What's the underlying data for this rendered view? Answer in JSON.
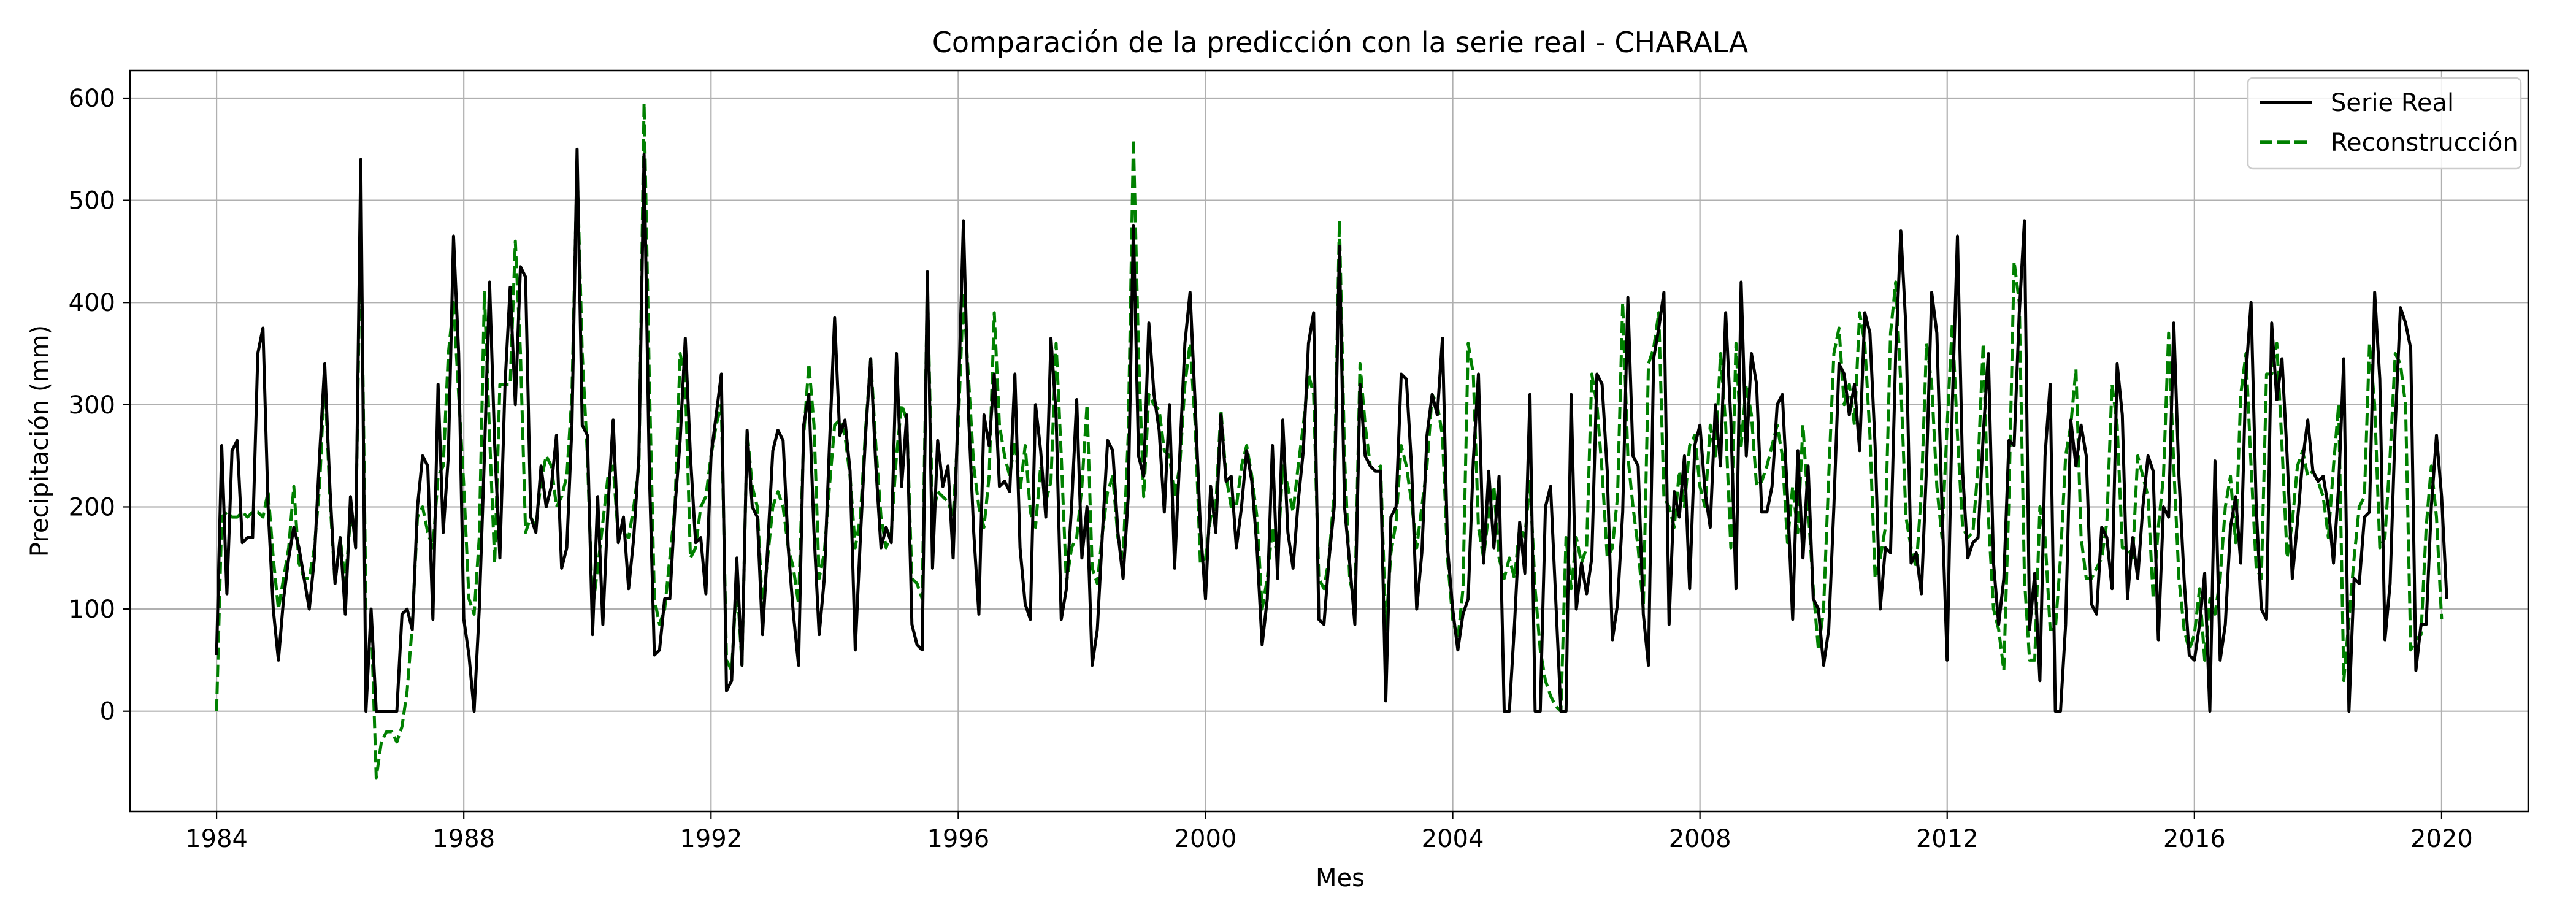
{
  "chart_data": {
    "type": "line",
    "title": "Comparación de la predicción con la serie real - CHARALA",
    "xlabel": "Mes",
    "ylabel": "Precipitación (mm)",
    "xlim": [
      1982.6,
      2021.4
    ],
    "ylim": [
      -98,
      627
    ],
    "grid": true,
    "legend_position": "upper-right",
    "x_ticks": [
      1984,
      1988,
      1992,
      1996,
      2000,
      2004,
      2008,
      2012,
      2016,
      2020
    ],
    "x_tick_labels": [
      "1984",
      "1988",
      "1992",
      "1996",
      "2000",
      "2004",
      "2008",
      "2012",
      "2016",
      "2020"
    ],
    "y_ticks": [
      0,
      100,
      200,
      300,
      400,
      500,
      600
    ],
    "y_tick_labels": [
      "0",
      "100",
      "200",
      "300",
      "400",
      "500",
      "600"
    ],
    "x_start": 1984.0,
    "x_step_months": 1,
    "series": [
      {
        "name": "Serie Real",
        "color": "#000000",
        "style": "solid",
        "values": [
          55,
          260,
          115,
          255,
          265,
          165,
          170,
          170,
          350,
          375,
          200,
          100,
          50,
          110,
          150,
          180,
          160,
          130,
          100,
          150,
          250,
          340,
          220,
          125,
          170,
          95,
          210,
          160,
          540,
          0,
          100,
          0,
          0,
          0,
          0,
          0,
          95,
          100,
          80,
          200,
          250,
          240,
          90,
          320,
          175,
          250,
          465,
          350,
          90,
          55,
          0,
          100,
          250,
          420,
          260,
          150,
          320,
          415,
          300,
          435,
          425,
          190,
          175,
          240,
          200,
          220,
          270,
          140,
          160,
          280,
          550,
          280,
          270,
          75,
          210,
          85,
          200,
          285,
          165,
          190,
          120,
          170,
          250,
          545,
          240,
          55,
          60,
          110,
          110,
          200,
          265,
          365,
          250,
          165,
          170,
          115,
          250,
          290,
          330,
          20,
          30,
          150,
          45,
          275,
          200,
          190,
          75,
          160,
          255,
          275,
          265,
          160,
          95,
          45,
          280,
          310,
          175,
          75,
          130,
          260,
          385,
          270,
          285,
          235,
          60,
          170,
          270,
          345,
          240,
          160,
          180,
          165,
          350,
          220,
          290,
          85,
          65,
          60,
          430,
          140,
          265,
          220,
          240,
          150,
          300,
          480,
          290,
          175,
          95,
          290,
          260,
          330,
          220,
          225,
          215,
          330,
          160,
          105,
          90,
          300,
          255,
          190,
          365,
          290,
          90,
          120,
          200,
          305,
          150,
          200,
          45,
          80,
          175,
          265,
          255,
          175,
          130,
          210,
          475,
          250,
          230,
          380,
          310,
          275,
          195,
          300,
          140,
          250,
          360,
          410,
          300,
          180,
          110,
          220,
          175,
          290,
          225,
          230,
          160,
          200,
          255,
          225,
          160,
          65,
          110,
          260,
          130,
          285,
          175,
          140,
          205,
          255,
          360,
          390,
          90,
          85,
          150,
          200,
          455,
          200,
          145,
          85,
          320,
          250,
          240,
          235,
          235,
          10,
          190,
          200,
          330,
          325,
          240,
          100,
          155,
          270,
          310,
          290,
          365,
          160,
          100,
          60,
          95,
          110,
          245,
          330,
          145,
          235,
          160,
          230,
          0,
          0,
          85,
          185,
          135,
          310,
          0,
          0,
          200,
          220,
          110,
          0,
          0,
          310,
          100,
          145,
          115,
          150,
          330,
          320,
          235,
          70,
          105,
          195,
          405,
          250,
          240,
          95,
          45,
          345,
          375,
          410,
          85,
          215,
          190,
          250,
          120,
          260,
          280,
          215,
          180,
          300,
          240,
          390,
          285,
          120,
          420,
          250,
          350,
          320,
          195,
          195,
          220,
          300,
          310,
          210,
          90,
          255,
          150,
          240,
          110,
          100,
          45,
          80,
          200,
          340,
          330,
          290,
          320,
          255,
          390,
          370,
          260,
          100,
          160,
          155,
          350,
          470,
          375,
          145,
          155,
          115,
          240,
          410,
          370,
          200,
          50,
          300,
          465,
          235,
          150,
          165,
          170,
          270,
          350,
          145,
          85,
          130,
          265,
          260,
          390,
          480,
          80,
          135,
          30,
          250,
          320,
          0,
          0,
          85,
          285,
          240,
          280,
          250,
          105,
          95,
          180,
          170,
          120,
          340,
          290,
          110,
          170,
          130,
          200,
          250,
          235,
          70,
          200,
          190,
          380,
          230,
          130,
          55,
          50,
          85,
          135,
          0,
          245,
          50,
          85,
          180,
          210,
          145,
          330,
          400,
          200,
          100,
          90,
          380,
          305,
          345,
          250,
          130,
          185,
          245,
          285,
          235,
          225,
          230,
          200,
          145,
          220,
          345,
          0,
          130,
          125,
          190,
          195,
          410,
          325,
          70,
          125,
          280,
          395,
          380,
          355,
          40,
          85,
          85,
          200,
          270,
          210,
          110
        ]
      },
      {
        "name": "Reconstrucción",
        "color": "#008000",
        "style": "dashed",
        "values": [
          0,
          190,
          195,
          190,
          190,
          195,
          190,
          195,
          195,
          190,
          215,
          150,
          100,
          130,
          160,
          220,
          145,
          130,
          130,
          160,
          220,
          330,
          210,
          125,
          170,
          125,
          190,
          170,
          490,
          100,
          95,
          -65,
          -30,
          -20,
          -20,
          -30,
          -15,
          20,
          85,
          190,
          200,
          175,
          160,
          230,
          240,
          350,
          400,
          310,
          220,
          110,
          95,
          170,
          410,
          270,
          145,
          320,
          320,
          320,
          460,
          350,
          175,
          190,
          180,
          225,
          250,
          240,
          200,
          210,
          230,
          310,
          535,
          350,
          250,
          100,
          140,
          185,
          230,
          240,
          170,
          175,
          170,
          200,
          240,
          595,
          330,
          110,
          85,
          100,
          150,
          200,
          350,
          325,
          150,
          160,
          200,
          210,
          250,
          280,
          300,
          50,
          40,
          130,
          45,
          275,
          220,
          200,
          100,
          150,
          200,
          215,
          200,
          160,
          140,
          105,
          270,
          340,
          280,
          130,
          155,
          220,
          280,
          285,
          270,
          230,
          160,
          190,
          275,
          345,
          260,
          190,
          160,
          175,
          250,
          300,
          285,
          130,
          125,
          110,
          420,
          190,
          215,
          210,
          205,
          190,
          280,
          410,
          325,
          240,
          200,
          180,
          230,
          390,
          280,
          250,
          230,
          265,
          215,
          260,
          195,
          180,
          240,
          205,
          225,
          360,
          250,
          125,
          160,
          170,
          220,
          300,
          140,
          125,
          175,
          215,
          230,
          170,
          150,
          270,
          560,
          350,
          210,
          310,
          300,
          295,
          255,
          250,
          210,
          240,
          320,
          360,
          280,
          145,
          150,
          190,
          200,
          295,
          230,
          200,
          200,
          240,
          260,
          230,
          190,
          100,
          130,
          180,
          150,
          240,
          220,
          195,
          240,
          280,
          330,
          310,
          130,
          120,
          150,
          215,
          480,
          250,
          130,
          105,
          340,
          280,
          240,
          235,
          240,
          80,
          155,
          185,
          260,
          240,
          205,
          160,
          200,
          240,
          310,
          300,
          270,
          150,
          90,
          70,
          120,
          360,
          330,
          180,
          150,
          195,
          220,
          150,
          130,
          150,
          130,
          180,
          170,
          225,
          120,
          60,
          30,
          15,
          5,
          0,
          170,
          120,
          170,
          145,
          160,
          330,
          300,
          235,
          150,
          160,
          210,
          400,
          250,
          200,
          160,
          100,
          340,
          355,
          390,
          210,
          200,
          180,
          235,
          200,
          260,
          270,
          220,
          200,
          280,
          250,
          350,
          280,
          160,
          360,
          260,
          320,
          290,
          220,
          225,
          240,
          260,
          280,
          250,
          165,
          220,
          175,
          280,
          200,
          120,
          60,
          100,
          230,
          350,
          375,
          300,
          320,
          280,
          390,
          360,
          270,
          130,
          150,
          180,
          370,
          420,
          320,
          190,
          160,
          140,
          215,
          360,
          320,
          220,
          170,
          280,
          380,
          270,
          180,
          170,
          175,
          240,
          360,
          190,
          100,
          80,
          40,
          210,
          440,
          400,
          130,
          50,
          50,
          200,
          170,
          80,
          80,
          150,
          250,
          280,
          335,
          170,
          130,
          130,
          140,
          150,
          185,
          320,
          280,
          160,
          160,
          150,
          250,
          230,
          210,
          110,
          180,
          230,
          370,
          240,
          130,
          80,
          60,
          75,
          120,
          50,
          110,
          95,
          130,
          200,
          230,
          165,
          310,
          350,
          240,
          140,
          130,
          330,
          330,
          360,
          260,
          150,
          185,
          240,
          255,
          230,
          235,
          225,
          210,
          170,
          240,
          300,
          30,
          90,
          150,
          200,
          210,
          360,
          300,
          160,
          170,
          250,
          350,
          340,
          300,
          60,
          70,
          75,
          180,
          240,
          190,
          90
        ]
      }
    ]
  }
}
